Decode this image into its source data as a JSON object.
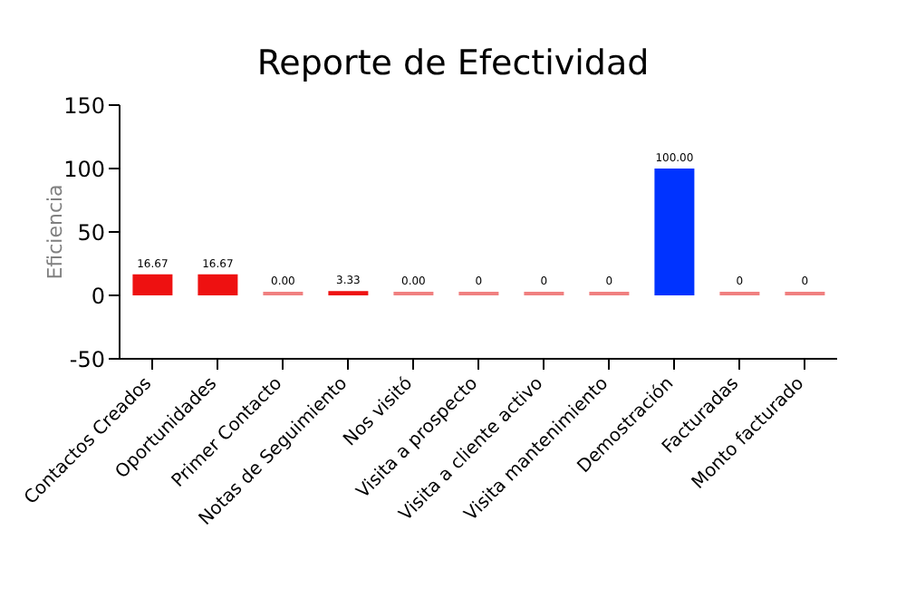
{
  "chart_data": {
    "type": "bar",
    "title": "Reporte de Efectividad",
    "ylabel": "Eficiencia",
    "categories": [
      "Contactos Creados",
      "Oportunidades",
      "Primer Contacto",
      "Notas de Seguimiento",
      "Nos visitó",
      "Visita a prospecto",
      "Visita a cliente activo",
      "Visita mantenimiento",
      "Demostración",
      "Facturadas",
      "Monto facturado"
    ],
    "values": [
      16.67,
      16.67,
      0,
      3.33,
      0,
      0,
      0,
      0,
      100,
      0,
      0
    ],
    "colors": [
      "#ee1111",
      "#ee1111",
      "#f08080",
      "#ee1111",
      "#f08080",
      "#f08080",
      "#f08080",
      "#f08080",
      "#0033ff",
      "#f08080",
      "#f08080"
    ],
    "value_labels": [
      "16.67",
      "16.67",
      "0.00",
      "3.33",
      "0.00",
      "0",
      "0",
      "0",
      "100.00",
      "0",
      "0"
    ],
    "ylim": [
      -50,
      150
    ],
    "yticks": [
      -50,
      0,
      50,
      100,
      150
    ],
    "grid": false
  }
}
